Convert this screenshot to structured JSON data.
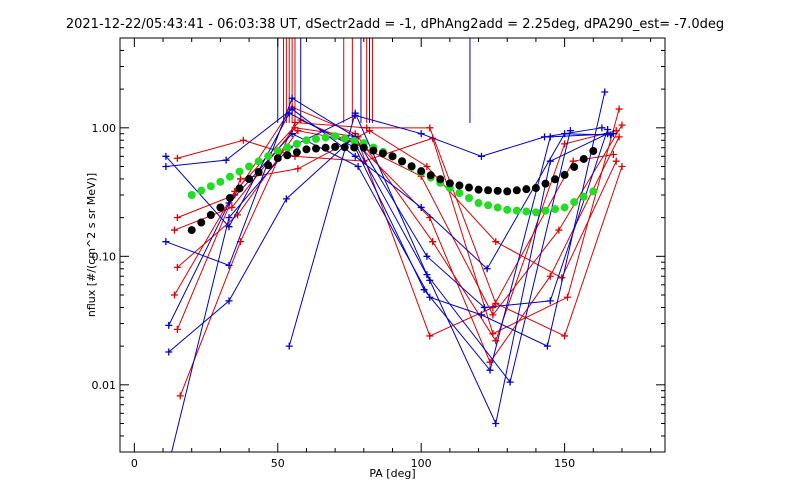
{
  "chart_data": {
    "type": "line",
    "title": "2021-12-22/05:43:41 - 06:03:38 UT, dSectr2add = -1, dPhAng2add = 2.25deg, dPA290_est=  -7.0deg",
    "xlabel": "PA [deg]",
    "ylabel": "nflux [#/(cm^2 s sr MeV)]",
    "xlim": [
      -5,
      185
    ],
    "ylim": [
      0.003,
      5
    ],
    "y_scale": "log",
    "x_ticks": [
      0,
      50,
      100,
      150
    ],
    "x_tick_labels": [
      "0",
      "50",
      "100",
      "150"
    ],
    "y_ticks": [
      0.01,
      0.1,
      1.0
    ],
    "y_tick_labels": [
      "0.01",
      "0.10",
      "1.00"
    ],
    "colors": {
      "red": "#dd0000",
      "blue": "#0000cc",
      "green": "#22dd22",
      "black": "#000000"
    },
    "series": [
      {
        "color": "red",
        "x": [
          15,
          35,
          55,
          77,
          103,
          125,
          153,
          167
        ],
        "y": [
          0.2,
          0.3,
          1.45,
          0.9,
          0.024,
          0.04,
          0.55,
          0.62
        ]
      },
      {
        "color": "red",
        "x": [
          14,
          34,
          56,
          78,
          104,
          126,
          150,
          168
        ],
        "y": [
          0.16,
          0.24,
          1.0,
          0.85,
          0.13,
          0.022,
          0.75,
          0.95
        ]
      },
      {
        "color": "red",
        "x": [
          15,
          36,
          57,
          77,
          103,
          124,
          145,
          169
        ],
        "y": [
          0.082,
          0.21,
          0.95,
          0.78,
          0.2,
          0.015,
          0.07,
          0.85
        ]
      },
      {
        "color": "red",
        "x": [
          14,
          35,
          58,
          80,
          100,
          125,
          148,
          170
        ],
        "y": [
          0.05,
          0.32,
          1.15,
          0.7,
          0.42,
          0.035,
          0.16,
          1.05
        ]
      },
      {
        "color": "red",
        "x": [
          15,
          37,
          57,
          82,
          102,
          126,
          149,
          168
        ],
        "y": [
          0.027,
          0.4,
          0.48,
          0.95,
          0.5,
          0.13,
          0.068,
          0.55
        ]
      },
      {
        "color": "red",
        "x": [
          16,
          37,
          56,
          81,
          103,
          126,
          150,
          170
        ],
        "y": [
          0.0082,
          0.13,
          1.1,
          1.0,
          1.0,
          0.043,
          0.024,
          0.5
        ]
      },
      {
        "color": "red",
        "x": [
          15,
          38,
          56,
          80,
          104,
          125,
          151,
          169
        ],
        "y": [
          0.58,
          0.8,
          0.6,
          0.55,
          0.83,
          0.025,
          0.048,
          1.4
        ]
      },
      {
        "color": "blue",
        "x": [
          11,
          33,
          54,
          77,
          101,
          124,
          145,
          167
        ],
        "y": [
          0.6,
          0.17,
          1.3,
          0.7,
          0.055,
          0.013,
          0.85,
          0.9
        ]
      },
      {
        "color": "blue",
        "x": [
          11,
          33,
          55,
          77,
          102,
          122,
          145,
          165
        ],
        "y": [
          0.13,
          0.085,
          1.7,
          0.85,
          0.1,
          0.04,
          0.045,
          0.97
        ]
      },
      {
        "color": "blue",
        "x": [
          12,
          33,
          55,
          78,
          103,
          121,
          144,
          164
        ],
        "y": [
          0.029,
          0.26,
          0.9,
          0.5,
          0.048,
          0.035,
          0.02,
          1.9
        ]
      },
      {
        "color": "blue",
        "x": [
          12,
          33,
          53,
          76,
          103,
          126,
          145,
          165
        ],
        "y": [
          0.018,
          0.045,
          0.28,
          0.82,
          0.065,
          0.005,
          0.55,
          0.9
        ]
      },
      {
        "color": "blue",
        "x": [
          13,
          33,
          54,
          77,
          100,
          121,
          143,
          163
        ],
        "y": [
          0.0026,
          0.2,
          0.7,
          1.25,
          0.9,
          0.6,
          0.85,
          1.0
        ]
      },
      {
        "color": "blue",
        "x": [
          11,
          32,
          55,
          77,
          100,
          123,
          150,
          166
        ],
        "y": [
          0.5,
          0.56,
          1.4,
          0.6,
          0.24,
          0.08,
          0.9,
          0.88
        ]
      },
      {
        "color": "blue",
        "x": [
          54,
          77,
          102,
          131,
          152
        ],
        "y": [
          0.02,
          1.3,
          0.072,
          0.0105,
          0.95
        ]
      }
    ],
    "fit_curves": [
      {
        "color": "green",
        "x": [
          20,
          30,
          40,
          50,
          60,
          70,
          80,
          90,
          100,
          110,
          120,
          130,
          140,
          150,
          160
        ],
        "y": [
          0.3,
          0.38,
          0.5,
          0.66,
          0.8,
          0.86,
          0.76,
          0.6,
          0.45,
          0.34,
          0.26,
          0.23,
          0.22,
          0.24,
          0.32
        ]
      },
      {
        "color": "black",
        "x": [
          20,
          30,
          40,
          50,
          60,
          70,
          80,
          90,
          100,
          110,
          120,
          130,
          140,
          150,
          160
        ],
        "y": [
          0.16,
          0.24,
          0.4,
          0.58,
          0.68,
          0.71,
          0.7,
          0.6,
          0.46,
          0.37,
          0.33,
          0.32,
          0.34,
          0.43,
          0.66
        ]
      }
    ],
    "spikes": [
      {
        "color": "blue",
        "x": 50
      },
      {
        "color": "red",
        "x": 52
      },
      {
        "color": "red",
        "x": 53
      },
      {
        "color": "red",
        "x": 54
      },
      {
        "color": "red",
        "x": 55
      },
      {
        "color": "red",
        "x": 56
      },
      {
        "color": "blue",
        "x": 58
      },
      {
        "color": "red",
        "x": 73
      },
      {
        "color": "red",
        "x": 76
      },
      {
        "color": "blue",
        "x": 79
      },
      {
        "color": "red",
        "x": 81
      },
      {
        "color": "blue",
        "x": 82
      },
      {
        "color": "red",
        "x": 83
      },
      {
        "color": "blue",
        "x": 117
      }
    ],
    "grid": false,
    "legend": "none"
  }
}
